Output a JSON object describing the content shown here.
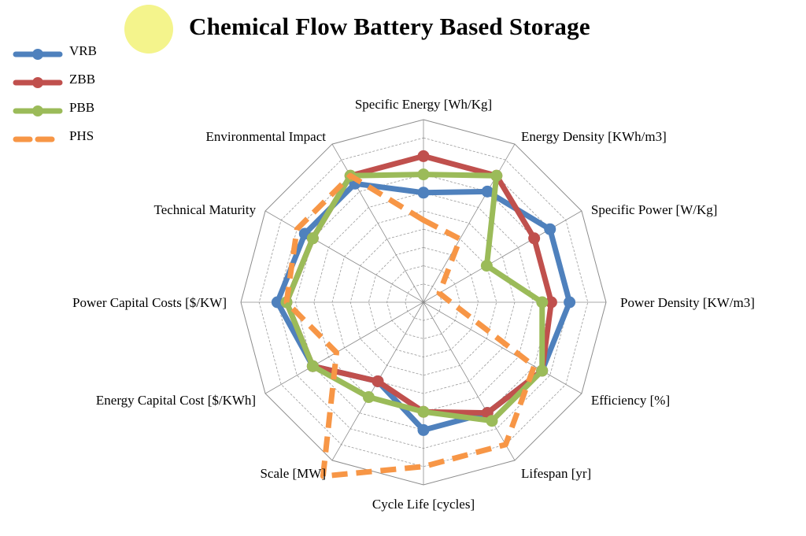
{
  "chart_data": {
    "type": "radar",
    "title": "Chemical Flow Battery Based Storage",
    "axes": [
      "Specific Energy [Wh/Kg]",
      "Energy Density [KWh/m3]",
      "Specific Power [W/Kg]",
      "Power Density [KW/m3]",
      "Efficiency [%]",
      "Lifespan [yr]",
      "Cycle Life [cycles]",
      "Scale [MW]",
      "Energy Capital Cost [$/KWh]",
      "Power Capital Costs [$/KW]",
      "Technical Maturity",
      "Environmental Impact"
    ],
    "rmax": 10,
    "rings": 10,
    "series": [
      {
        "name": "VRB",
        "color": "#4f81bd",
        "dashed": false,
        "values": [
          6,
          7,
          8,
          8,
          7.5,
          7,
          7,
          5,
          7,
          8,
          7.5,
          7.5
        ]
      },
      {
        "name": "ZBB",
        "color": "#c0504d",
        "dashed": false,
        "values": [
          8,
          8,
          7,
          7,
          7.5,
          7,
          6,
          5,
          7,
          7.5,
          7,
          8
        ]
      },
      {
        "name": "PBB",
        "color": "#9bbb59",
        "dashed": false,
        "values": [
          7,
          8,
          4,
          6.5,
          7.5,
          7.5,
          6,
          6,
          7,
          7.5,
          7,
          8
        ]
      },
      {
        "name": "PHS",
        "color": "#f79646",
        "dashed": true,
        "values": [
          4.5,
          4,
          1,
          1.5,
          7,
          9,
          9,
          11,
          5.5,
          7.5,
          8,
          8
        ]
      }
    ]
  }
}
